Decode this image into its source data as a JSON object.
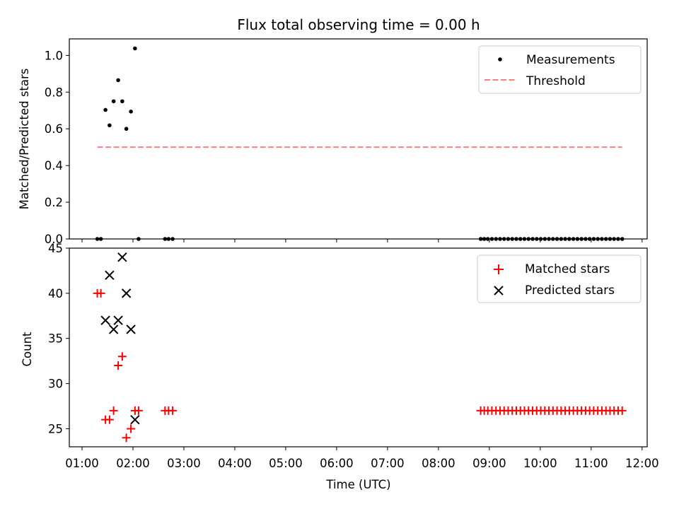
{
  "title": "Flux total observing time = 0.00 h",
  "chart_data": [
    {
      "type": "scatter",
      "ylabel": "Matched/Predicted stars",
      "ylim": [
        0,
        1.09
      ],
      "xlim": [
        0.75,
        12.1
      ],
      "yticks": [
        0.0,
        0.2,
        0.4,
        0.6,
        0.8,
        1.0
      ],
      "ytick_labels": [
        "0.0",
        "0.2",
        "0.4",
        "0.6",
        "0.8",
        "1.0"
      ],
      "legend_position": "top-right",
      "series": [
        {
          "name": "Measurements",
          "marker": "dot",
          "color": "#000000",
          "x": [
            1.3,
            1.37,
            1.46,
            1.54,
            1.62,
            1.71,
            1.79,
            1.87,
            1.96,
            2.04,
            2.11,
            2.63,
            2.7,
            2.78,
            8.83,
            8.9,
            8.97,
            9.05,
            9.13,
            9.21,
            9.29,
            9.37,
            9.45,
            9.53,
            9.61,
            9.69,
            9.77,
            9.85,
            9.93,
            10.01,
            10.09,
            10.17,
            10.25,
            10.33,
            10.41,
            10.49,
            10.57,
            10.65,
            10.73,
            10.81,
            10.89,
            10.97,
            11.05,
            11.13,
            11.21,
            11.29,
            11.37,
            11.45,
            11.53,
            11.61
          ],
          "y": [
            0,
            0,
            0.703,
            0.619,
            0.75,
            0.865,
            0.75,
            0.6,
            0.694,
            1.038,
            0,
            0,
            0,
            0,
            0,
            0,
            0,
            0,
            0,
            0,
            0,
            0,
            0,
            0,
            0,
            0,
            0,
            0,
            0,
            0,
            0,
            0,
            0,
            0,
            0,
            0,
            0,
            0,
            0,
            0,
            0,
            0,
            0,
            0,
            0,
            0,
            0,
            0,
            0,
            0
          ]
        },
        {
          "name": "Threshold",
          "type": "line",
          "style": "dashed",
          "color": "#ff7f7f",
          "x": [
            1.3,
            11.61
          ],
          "y": [
            0.5,
            0.5
          ]
        }
      ]
    },
    {
      "type": "scatter",
      "ylabel": "Count",
      "xlabel": "Time (UTC)",
      "ylim": [
        23,
        45
      ],
      "xlim": [
        0.75,
        12.1
      ],
      "yticks": [
        25,
        30,
        35,
        40,
        45
      ],
      "ytick_labels": [
        "25",
        "30",
        "35",
        "40",
        "45"
      ],
      "xticks": [
        1,
        2,
        3,
        4,
        5,
        6,
        7,
        8,
        9,
        10,
        11,
        12
      ],
      "xtick_labels": [
        "01:00",
        "02:00",
        "03:00",
        "04:00",
        "05:00",
        "06:00",
        "07:00",
        "08:00",
        "09:00",
        "10:00",
        "11:00",
        "12:00"
      ],
      "legend_position": "top-right",
      "series": [
        {
          "name": "Matched stars",
          "marker": "plus",
          "color": "#ff0000",
          "x": [
            1.3,
            1.37,
            1.46,
            1.54,
            1.62,
            1.71,
            1.79,
            1.87,
            1.96,
            2.04,
            2.11,
            2.63,
            2.7,
            2.78,
            8.83,
            8.9,
            8.97,
            9.05,
            9.13,
            9.21,
            9.29,
            9.37,
            9.45,
            9.53,
            9.61,
            9.69,
            9.77,
            9.85,
            9.93,
            10.01,
            10.09,
            10.17,
            10.25,
            10.33,
            10.41,
            10.49,
            10.57,
            10.65,
            10.73,
            10.81,
            10.89,
            10.97,
            11.05,
            11.13,
            11.21,
            11.29,
            11.37,
            11.45,
            11.53,
            11.61
          ],
          "y": [
            40,
            40,
            26,
            26,
            27,
            32,
            33,
            24,
            25,
            27,
            27,
            27,
            27,
            27,
            27,
            27,
            27,
            27,
            27,
            27,
            27,
            27,
            27,
            27,
            27,
            27,
            27,
            27,
            27,
            27,
            27,
            27,
            27,
            27,
            27,
            27,
            27,
            27,
            27,
            27,
            27,
            27,
            27,
            27,
            27,
            27,
            27,
            27,
            27,
            27
          ]
        },
        {
          "name": "Predicted stars",
          "marker": "x",
          "color": "#000000",
          "x": [
            1.46,
            1.54,
            1.62,
            1.71,
            1.79,
            1.87,
            1.96,
            2.04
          ],
          "y": [
            37,
            42,
            36,
            37,
            44,
            40,
            36,
            26
          ]
        }
      ]
    }
  ]
}
